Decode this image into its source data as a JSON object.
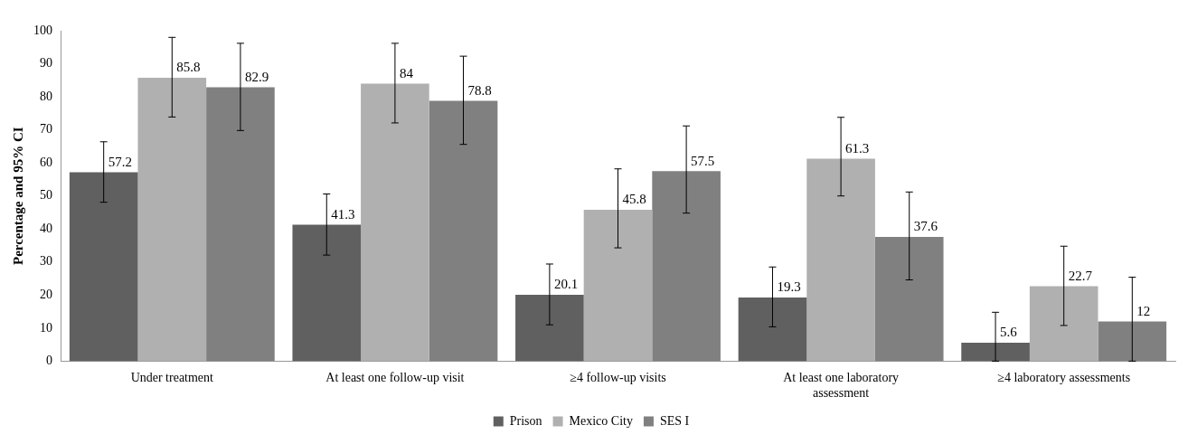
{
  "chart_data": {
    "type": "bar",
    "ylabel": "Percentage and 95% CI",
    "categories": [
      "Under treatment",
      "At least one follow-up visit",
      "≥4 follow-up visits",
      "At least one laboratory assessment",
      "≥4 laboratory assessments"
    ],
    "series": [
      {
        "name": "Prison",
        "color": "#606060",
        "values": [
          57.2,
          41.3,
          20.1,
          19.3,
          5.6
        ],
        "errors": [
          [
            48.1,
            66.4
          ],
          [
            32.1,
            50.6
          ],
          [
            11.0,
            29.4
          ],
          [
            10.4,
            28.5
          ],
          [
            0,
            14.8
          ]
        ]
      },
      {
        "name": "Mexico City",
        "color": "#b0b0b0",
        "values": [
          85.8,
          84,
          45.8,
          61.3,
          22.7
        ],
        "errors": [
          [
            73.9,
            98.0
          ],
          [
            72.1,
            96.2
          ],
          [
            34.3,
            58.2
          ],
          [
            50.0,
            73.8
          ],
          [
            10.8,
            34.8
          ]
        ]
      },
      {
        "name": "SES I",
        "color": "#808080",
        "values": [
          82.9,
          78.8,
          57.5,
          37.6,
          12
        ],
        "errors": [
          [
            69.8,
            96.2
          ],
          [
            65.6,
            92.3
          ],
          [
            44.8,
            71.2
          ],
          [
            24.6,
            51.2
          ],
          [
            0,
            25.4
          ]
        ]
      }
    ],
    "ylim": [
      0,
      100
    ],
    "yticks": [
      0,
      10,
      20,
      30,
      40,
      50,
      60,
      70,
      80,
      90,
      100
    ],
    "grid": false,
    "legend": "bottom",
    "data_labels": true
  }
}
